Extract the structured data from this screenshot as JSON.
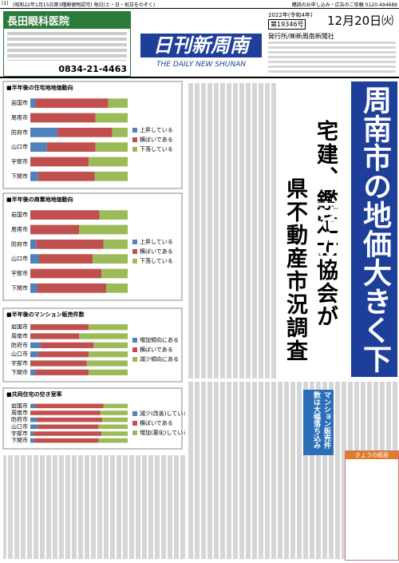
{
  "header": {
    "page": "(1)",
    "permit": "(昭和22年1月15日第3種郵便物認可) 毎日(土・日・祝日をのぞく)",
    "subscribe": "購読のお申し込み・広告のご依頼 0120-494689",
    "masthead": "日刊新周南",
    "masthead_en": "THE DAILY NEW SHUNAN",
    "era": "2022年(令和4年)",
    "issue": "第19346号",
    "date": "12月20日㈫",
    "publisher": "発行所/㈱新周南新聞社"
  },
  "ad": {
    "name": "長田眼科医院",
    "phone": "0834-21-4463"
  },
  "headline": {
    "main": "周南市の地価大きく下落か",
    "sub1": "宅建、鑑定士協会が",
    "sub2": "県不動産市況調査",
    "box": "マンション販売件数は大幅落ち込み",
    "box_label": "きょうの紙面"
  },
  "chart_data": [
    {
      "type": "bar",
      "title": "■半年後の住宅地地価動向",
      "categories": [
        "岩国市",
        "周南市",
        "防府市",
        "山口市",
        "宇部市",
        "下関市"
      ],
      "xlim": [
        0,
        100
      ],
      "series": [
        {
          "name": "上昇している",
          "color": "#4f81bd",
          "values": [
            5,
            0,
            28,
            17,
            0,
            8
          ]
        },
        {
          "name": "横ばいである",
          "color": "#c0504d",
          "values": [
            75,
            67,
            56,
            50,
            60,
            58
          ]
        },
        {
          "name": "下落している",
          "color": "#9bbb59",
          "values": [
            20,
            33,
            16,
            33,
            40,
            34
          ]
        }
      ]
    },
    {
      "type": "bar",
      "title": "■半年後の商業地地価動向",
      "categories": [
        "岩国市",
        "周南市",
        "防府市",
        "山口市",
        "宇部市",
        "下関市"
      ],
      "xlim": [
        0,
        100
      ],
      "series": [
        {
          "name": "上昇している",
          "color": "#4f81bd",
          "values": [
            0,
            0,
            6,
            9,
            0,
            7
          ]
        },
        {
          "name": "横ばいである",
          "color": "#c0504d",
          "values": [
            71,
            50,
            69,
            55,
            73,
            71
          ]
        },
        {
          "name": "下落している",
          "color": "#9bbb59",
          "values": [
            29,
            50,
            25,
            36,
            27,
            22
          ]
        }
      ]
    },
    {
      "type": "bar",
      "title": "■半年後のマンション販売件数",
      "categories": [
        "岩国市",
        "周南市",
        "防府市",
        "山口市",
        "宇部市",
        "下関市"
      ],
      "xlim": [
        0,
        100
      ],
      "series": [
        {
          "name": "増加傾向にある",
          "color": "#4f81bd",
          "values": [
            0,
            0,
            10,
            8,
            0,
            5
          ]
        },
        {
          "name": "横ばいである",
          "color": "#c0504d",
          "values": [
            60,
            50,
            55,
            52,
            58,
            55
          ]
        },
        {
          "name": "減少傾向にある",
          "color": "#9bbb59",
          "values": [
            40,
            50,
            35,
            40,
            42,
            40
          ]
        }
      ]
    },
    {
      "type": "bar",
      "title": "■共同住宅の空き室率",
      "categories": [
        "岩国市",
        "周南市",
        "防府市",
        "山口市",
        "宇部市",
        "下関市"
      ],
      "xlim": [
        0,
        100
      ],
      "series": [
        {
          "name": "減少(改善)している",
          "color": "#4f81bd",
          "values": [
            5,
            0,
            6,
            8,
            3,
            4
          ]
        },
        {
          "name": "横ばいである",
          "color": "#c0504d",
          "values": [
            70,
            72,
            68,
            62,
            70,
            66
          ]
        },
        {
          "name": "増加(悪化)している",
          "color": "#9bbb59",
          "values": [
            25,
            28,
            26,
            30,
            27,
            30
          ]
        }
      ]
    }
  ]
}
